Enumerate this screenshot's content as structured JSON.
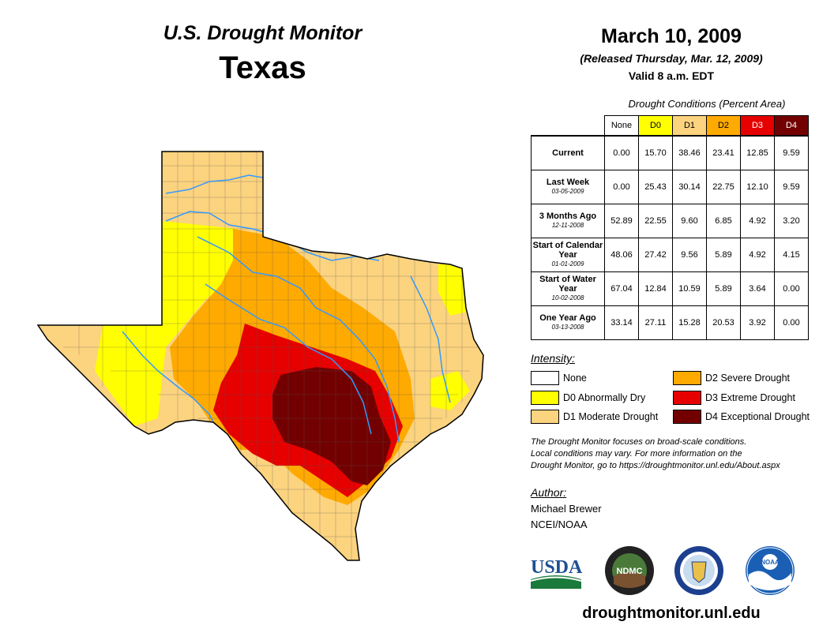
{
  "header": {
    "subtitle": "U.S. Drought Monitor",
    "state": "Texas",
    "date": "March 10, 2009",
    "released": "(Released Thursday, Mar. 12, 2009)",
    "valid": "Valid 8 a.m. EDT"
  },
  "table": {
    "caption": "Drought Conditions (Percent Area)",
    "columns": [
      {
        "label": "None",
        "color": "#ffffff",
        "text_color": "#000000"
      },
      {
        "label": "D0",
        "color": "#ffff00",
        "text_color": "#000000"
      },
      {
        "label": "D1",
        "color": "#fcd37f",
        "text_color": "#000000"
      },
      {
        "label": "D2",
        "color": "#ffaa00",
        "text_color": "#000000"
      },
      {
        "label": "D3",
        "color": "#e60000",
        "text_color": "#ffffff"
      },
      {
        "label": "D4",
        "color": "#730000",
        "text_color": "#ffffff"
      }
    ],
    "rows": [
      {
        "label": "Current",
        "date": "",
        "values": [
          "0.00",
          "15.70",
          "38.46",
          "23.41",
          "12.85",
          "9.59"
        ]
      },
      {
        "label": "Last Week",
        "date": "03-05-2009",
        "values": [
          "0.00",
          "25.43",
          "30.14",
          "22.75",
          "12.10",
          "9.59"
        ]
      },
      {
        "label": "3 Months Ago",
        "date": "12-11-2008",
        "values": [
          "52.89",
          "22.55",
          "9.60",
          "6.85",
          "4.92",
          "3.20"
        ]
      },
      {
        "label": "Start of Calendar Year",
        "date": "01-01-2009",
        "values": [
          "48.06",
          "27.42",
          "9.56",
          "5.89",
          "4.92",
          "4.15"
        ]
      },
      {
        "label": "Start of Water Year",
        "date": "10-02-2008",
        "values": [
          "67.04",
          "12.84",
          "10.59",
          "5.89",
          "3.64",
          "0.00"
        ]
      },
      {
        "label": "One Year Ago",
        "date": "03-13-2008",
        "values": [
          "33.14",
          "27.11",
          "15.28",
          "20.53",
          "3.92",
          "0.00"
        ]
      }
    ]
  },
  "legend": {
    "label": "Intensity:",
    "items": [
      {
        "label": "None",
        "color": "#ffffff"
      },
      {
        "label": "D0 Abnormally Dry",
        "color": "#ffff00"
      },
      {
        "label": "D1 Moderate Drought",
        "color": "#fcd37f"
      },
      {
        "label": "D2 Severe Drought",
        "color": "#ffaa00"
      },
      {
        "label": "D3 Extreme Drought",
        "color": "#e60000"
      },
      {
        "label": "D4 Exceptional Drought",
        "color": "#730000"
      }
    ]
  },
  "note": {
    "line1": "The Drought Monitor focuses on broad-scale conditions.",
    "line2": "Local conditions may vary. For more information on the",
    "line3": "Drought Monitor, go to https://droughtmonitor.unl.edu/About.aspx"
  },
  "author": {
    "label": "Author:",
    "name": "Michael Brewer",
    "org": "NCEI/NOAA"
  },
  "logos": {
    "usda": "USDA",
    "ndmc": "NDMC",
    "noaa": "NOAA"
  },
  "website": "droughtmonitor.unl.edu",
  "map_colors": {
    "none": "#ffffff",
    "d0": "#ffff00",
    "d1": "#fcd37f",
    "d2": "#ffaa00",
    "d3": "#e60000",
    "d4": "#730000",
    "river": "#3399ff"
  }
}
